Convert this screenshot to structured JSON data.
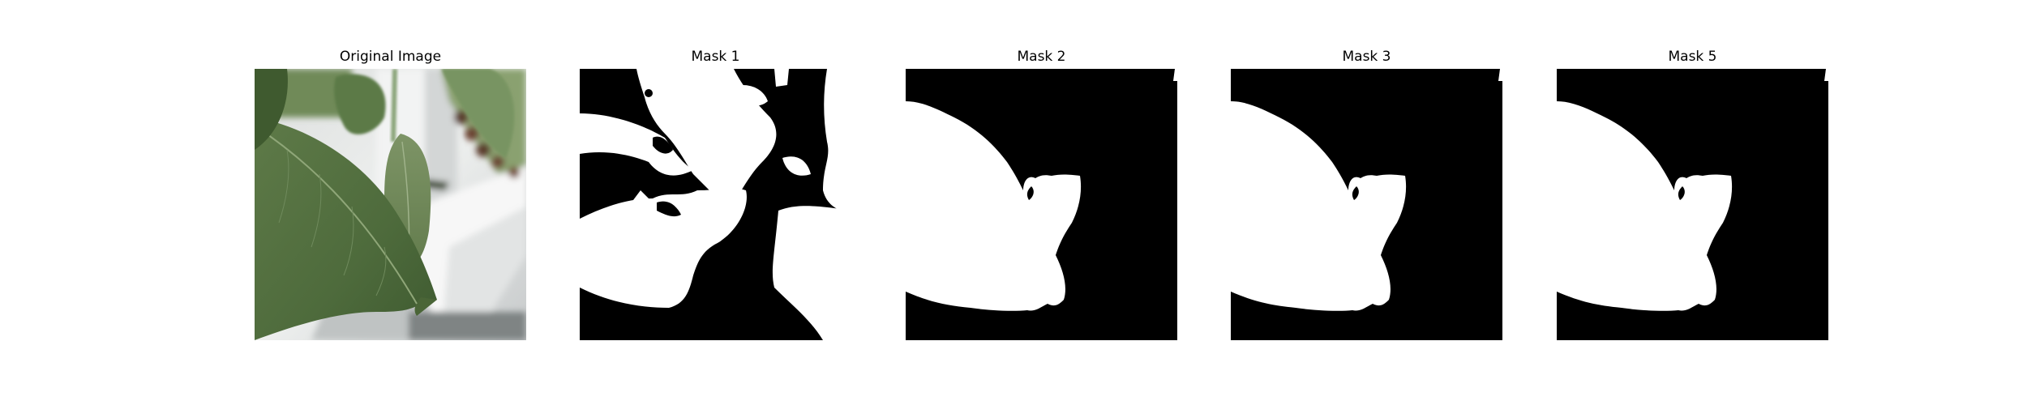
{
  "figure": {
    "background": "#ffffff",
    "panels": [
      {
        "title": "Original Image",
        "kind": "photo"
      },
      {
        "title": "Mask 1",
        "kind": "mask"
      },
      {
        "title": "Mask 2",
        "kind": "mask"
      },
      {
        "title": "Mask 3",
        "kind": "mask"
      },
      {
        "title": "Mask 5",
        "kind": "mask"
      }
    ],
    "mask_colors": {
      "foreground": "#ffffff",
      "background": "#000000"
    },
    "photo_colors": {
      "leaf_dark": "#4f6b3e",
      "leaf_mid": "#667f4f",
      "leaf_light": "#7d9466",
      "wall": "#e9eaea",
      "rail": "#f4f4f4",
      "shadow": "#9c9fa0",
      "pepper": "#5a3a2c"
    }
  }
}
